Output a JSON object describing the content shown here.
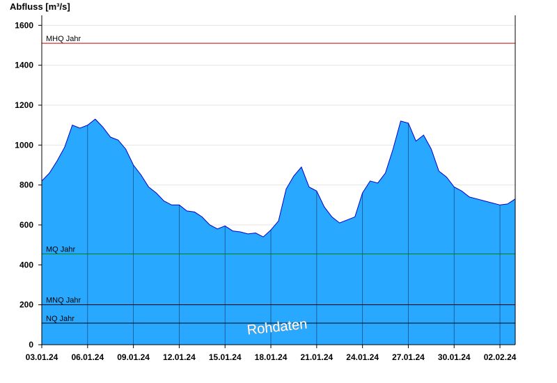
{
  "chart_data": {
    "type": "area",
    "ylabel": "Abfluss [m³/s]",
    "ylim": [
      0,
      1650
    ],
    "y_ticks": [
      0,
      200,
      400,
      600,
      800,
      1000,
      1200,
      1400,
      1600
    ],
    "x_range": [
      "2024-01-03",
      "2024-02-03"
    ],
    "x_ticks": [
      "03.01.24",
      "06.01.24",
      "09.01.24",
      "12.01.24",
      "15.01.24",
      "18.01.24",
      "21.01.24",
      "24.01.24",
      "27.01.24",
      "30.01.24",
      "02.02.24"
    ],
    "grid": true,
    "watermark": "Rohdaten",
    "colors": {
      "fill": "#29a8ff",
      "line": "#0000cc",
      "mhq": "#cc0000",
      "mq": "#008000",
      "mnq": "#000000",
      "nq": "#000000",
      "grid": "#e4e4e4"
    },
    "reference_lines": [
      {
        "name": "MHQ Jahr",
        "value": 1510,
        "color": "#cc0000"
      },
      {
        "name": "MQ Jahr",
        "value": 455,
        "color": "#008000"
      },
      {
        "name": "MNQ Jahr",
        "value": 200,
        "color": "#000000"
      },
      {
        "name": "NQ Jahr",
        "value": 108,
        "color": "#000000"
      }
    ],
    "series": [
      {
        "x": [
          "2024-01-03",
          "2024-01-03T12:00",
          "2024-01-04",
          "2024-01-04T12:00",
          "2024-01-05",
          "2024-01-05T12:00",
          "2024-01-06",
          "2024-01-06T12:00",
          "2024-01-07",
          "2024-01-07T12:00",
          "2024-01-08",
          "2024-01-08T12:00",
          "2024-01-09",
          "2024-01-09T12:00",
          "2024-01-10",
          "2024-01-10T12:00",
          "2024-01-11",
          "2024-01-11T12:00",
          "2024-01-12",
          "2024-01-12T12:00",
          "2024-01-13",
          "2024-01-13T12:00",
          "2024-01-14",
          "2024-01-14T12:00",
          "2024-01-15",
          "2024-01-15T12:00",
          "2024-01-16",
          "2024-01-16T12:00",
          "2024-01-17",
          "2024-01-17T12:00",
          "2024-01-18",
          "2024-01-18T12:00",
          "2024-01-19",
          "2024-01-19T12:00",
          "2024-01-20",
          "2024-01-20T12:00",
          "2024-01-21",
          "2024-01-21T12:00",
          "2024-01-22",
          "2024-01-22T12:00",
          "2024-01-23",
          "2024-01-23T12:00",
          "2024-01-24",
          "2024-01-24T12:00",
          "2024-01-25",
          "2024-01-25T12:00",
          "2024-01-26",
          "2024-01-26T12:00",
          "2024-01-27",
          "2024-01-27T12:00",
          "2024-01-28",
          "2024-01-28T12:00",
          "2024-01-29",
          "2024-01-29T12:00",
          "2024-01-30",
          "2024-01-30T12:00",
          "2024-01-31",
          "2024-01-31T12:00",
          "2024-02-01",
          "2024-02-01T12:00",
          "2024-02-02",
          "2024-02-02T12:00",
          "2024-02-03"
        ],
        "values": [
          820,
          860,
          920,
          990,
          1100,
          1085,
          1100,
          1130,
          1090,
          1040,
          1025,
          980,
          900,
          850,
          790,
          760,
          720,
          700,
          700,
          670,
          665,
          640,
          600,
          580,
          595,
          570,
          565,
          555,
          560,
          540,
          575,
          620,
          780,
          845,
          890,
          790,
          770,
          690,
          640,
          610,
          625,
          640,
          760,
          820,
          810,
          860,
          980,
          1120,
          1110,
          1020,
          1050,
          980,
          870,
          840,
          790,
          770,
          740,
          730,
          720,
          710,
          700,
          705,
          730
        ]
      }
    ]
  }
}
